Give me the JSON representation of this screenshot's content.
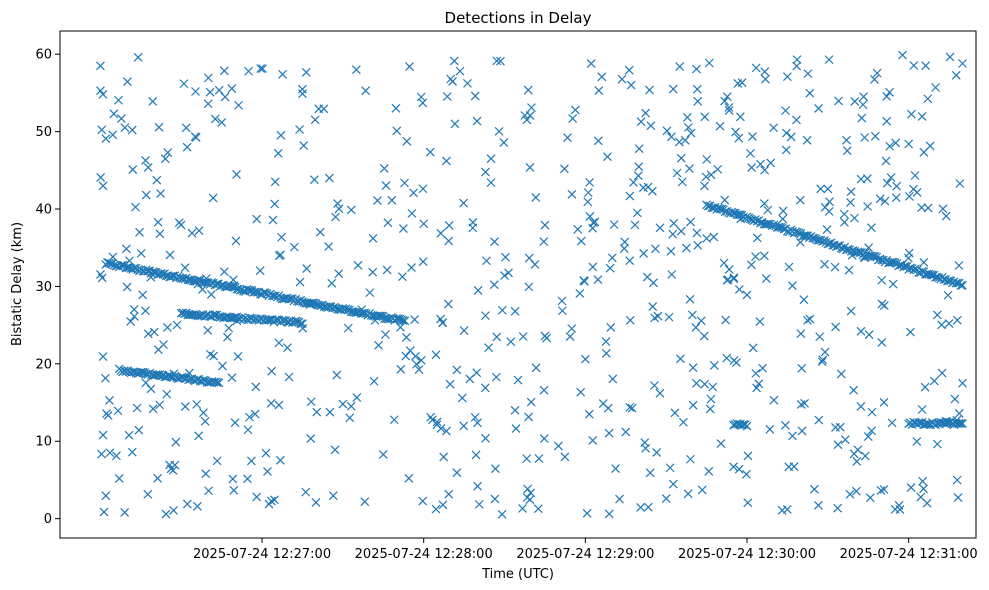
{
  "chart_data": {
    "type": "scatter",
    "title": "Detections in Delay",
    "xlabel": "Time (UTC)",
    "ylabel": "Bistatic Delay (km)",
    "x_axis": {
      "ticks": [
        "2025-07-24 12:27:00",
        "2025-07-24 12:28:00",
        "2025-07-24 12:29:00",
        "2025-07-24 12:30:00",
        "2025-07-24 12:31:00"
      ],
      "range": [
        "2025-07-24 12:25:45",
        "2025-07-24 12:31:25"
      ]
    },
    "y_axis": {
      "ticks": [
        "0",
        "10",
        "20",
        "30",
        "40",
        "50",
        "60"
      ],
      "range": [
        -2.5,
        63
      ]
    },
    "marker": "x",
    "color": "#1f77b4",
    "grid": false,
    "tracks": [
      {
        "x_start": "2025-07-24 12:26:02",
        "x_end": "2025-07-24 12:27:53",
        "y_start": 33.0,
        "y_end": 25.5
      },
      {
        "x_start": "2025-07-24 12:26:30",
        "x_end": "2025-07-24 12:27:15",
        "y_start": 26.5,
        "y_end": 25.3
      },
      {
        "x_start": "2025-07-24 12:26:07",
        "x_end": "2025-07-24 12:26:44",
        "y_start": 19.2,
        "y_end": 17.5
      },
      {
        "x_start": "2025-07-24 12:29:45",
        "x_end": "2025-07-24 12:31:20",
        "y_start": 40.5,
        "y_end": 30.2
      },
      {
        "x_start": "2025-07-24 12:29:55",
        "x_end": "2025-07-24 12:30:00",
        "y_start": 12.2,
        "y_end": 12.0
      },
      {
        "x_start": "2025-07-24 12:31:00",
        "x_end": "2025-07-24 12:31:20",
        "y_start": 12.3,
        "y_end": 12.3
      }
    ],
    "clutter_points": [
      [
        "2025-07-24 12:26:00",
        58.5
      ],
      [
        "2025-07-24 12:26:01",
        43.0
      ],
      [
        "2025-07-24 12:26:02",
        49.1
      ],
      [
        "2025-07-24 12:26:01",
        10.8
      ],
      [
        "2025-07-24 12:26:05",
        52.3
      ],
      [
        "2025-07-24 12:26:07",
        5.2
      ],
      [
        "2025-07-24 12:26:09",
        0.8
      ],
      [
        "2025-07-24 12:26:12",
        45.1
      ],
      [
        "2025-07-24 12:26:14",
        59.6
      ],
      [
        "2025-07-24 12:26:17",
        41.8
      ],
      [
        "2025-07-24 12:26:20",
        24.1
      ],
      [
        "2025-07-24 12:26:22",
        14.7
      ],
      [
        "2025-07-24 12:26:25",
        47.3
      ],
      [
        "2025-07-24 12:26:28",
        9.9
      ],
      [
        "2025-07-24 12:26:31",
        56.2
      ],
      [
        "2025-07-24 12:26:34",
        36.9
      ],
      [
        "2025-07-24 12:26:36",
        1.6
      ],
      [
        "2025-07-24 12:26:40",
        53.6
      ],
      [
        "2025-07-24 12:26:42",
        21.0
      ],
      [
        "2025-07-24 12:26:46",
        31.9
      ],
      [
        "2025-07-24 12:26:50",
        12.4
      ],
      [
        "2025-07-24 12:26:55",
        57.8
      ],
      [
        "2025-07-24 12:26:58",
        38.7
      ],
      [
        "2025-07-24 12:27:02",
        6.1
      ],
      [
        "2025-07-24 12:27:06",
        47.2
      ],
      [
        "2025-07-24 12:27:10",
        18.3
      ],
      [
        "2025-07-24 12:27:15",
        54.9
      ],
      [
        "2025-07-24 12:27:20",
        2.1
      ],
      [
        "2025-07-24 12:27:25",
        44.0
      ],
      [
        "2025-07-24 12:27:30",
        14.8
      ],
      [
        "2025-07-24 12:27:35",
        58.0
      ],
      [
        "2025-07-24 12:27:40",
        29.2
      ],
      [
        "2025-07-24 12:27:45",
        8.3
      ],
      [
        "2025-07-24 12:27:50",
        50.1
      ],
      [
        "2025-07-24 12:27:55",
        21.7
      ],
      [
        "2025-07-24 12:28:00",
        38.1
      ],
      [
        "2025-07-24 12:28:05",
        12.5
      ],
      [
        "2025-07-24 12:28:10",
        56.8
      ],
      [
        "2025-07-24 12:28:15",
        24.3
      ],
      [
        "2025-07-24 12:28:20",
        4.2
      ],
      [
        "2025-07-24 12:28:25",
        46.5
      ],
      [
        "2025-07-24 12:28:30",
        31.4
      ],
      [
        "2025-07-24 12:28:35",
        17.9
      ],
      [
        "2025-07-24 12:28:40",
        53.1
      ],
      [
        "2025-07-24 12:28:45",
        23.6
      ],
      [
        "2025-07-24 12:28:50",
        9.4
      ],
      [
        "2025-07-24 12:28:55",
        41.9
      ],
      [
        "2025-07-24 12:29:00",
        20.6
      ],
      [
        "2025-07-24 12:29:05",
        55.3
      ],
      [
        "2025-07-24 12:29:10",
        33.7
      ],
      [
        "2025-07-24 12:29:15",
        11.2
      ],
      [
        "2025-07-24 12:29:20",
        47.8
      ],
      [
        "2025-07-24 12:29:25",
        27.4
      ],
      [
        "2025-07-24 12:29:30",
        2.6
      ],
      [
        "2025-07-24 12:29:35",
        58.4
      ],
      [
        "2025-07-24 12:29:40",
        19.5
      ],
      [
        "2025-07-24 12:29:45",
        36.2
      ],
      [
        "2025-07-24 12:29:50",
        50.7
      ],
      [
        "2025-07-24 12:29:55",
        6.7
      ],
      [
        "2025-07-24 12:30:00",
        28.9
      ],
      [
        "2025-07-24 12:30:05",
        45.8
      ],
      [
        "2025-07-24 12:30:10",
        15.3
      ],
      [
        "2025-07-24 12:30:15",
        57.1
      ],
      [
        "2025-07-24 12:30:20",
        23.9
      ],
      [
        "2025-07-24 12:30:25",
        3.8
      ],
      [
        "2025-07-24 12:30:30",
        42.6
      ],
      [
        "2025-07-24 12:30:35",
        18.7
      ],
      [
        "2025-07-24 12:30:40",
        53.9
      ],
      [
        "2025-07-24 12:30:45",
        10.6
      ],
      [
        "2025-07-24 12:30:50",
        30.8
      ],
      [
        "2025-07-24 12:30:55",
        1.2
      ],
      [
        "2025-07-24 12:31:00",
        48.4
      ],
      [
        "2025-07-24 12:31:05",
        14.1
      ],
      [
        "2025-07-24 12:31:10",
        55.7
      ],
      [
        "2025-07-24 12:31:15",
        25.2
      ],
      [
        "2025-07-24 12:31:19",
        43.3
      ],
      [
        "2025-07-24 12:31:20",
        17.5
      ],
      [
        "2025-07-24 12:31:20",
        58.8
      ]
    ]
  }
}
